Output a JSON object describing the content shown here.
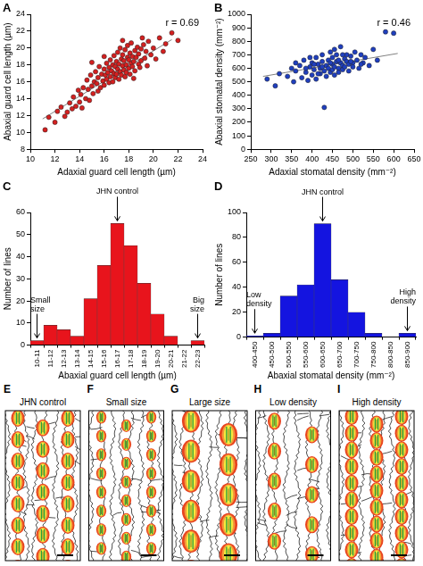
{
  "chart_data": [
    {
      "panel": "A",
      "type": "scatter",
      "x_label": "Adaxial guard cell length (µm)",
      "y_label": "Abaxial guard cell length (µm)",
      "color": "#d42020",
      "marker": "circle",
      "grid": false,
      "x": [
        11.2,
        11.5,
        12.0,
        12.2,
        12.5,
        12.8,
        13.0,
        13.2,
        13.4,
        13.5,
        13.7,
        13.9,
        14.0,
        14.1,
        14.2,
        14.3,
        14.5,
        14.6,
        14.7,
        14.8,
        14.9,
        15.0,
        15.1,
        15.2,
        15.3,
        15.4,
        15.5,
        15.5,
        15.6,
        15.7,
        15.8,
        15.9,
        16.0,
        16.0,
        16.1,
        16.2,
        16.2,
        16.3,
        16.4,
        16.4,
        16.5,
        16.5,
        16.6,
        16.7,
        16.7,
        16.8,
        16.8,
        16.9,
        16.9,
        17.0,
        17.0,
        17.1,
        17.1,
        17.2,
        17.2,
        17.3,
        17.3,
        17.4,
        17.4,
        17.5,
        17.5,
        17.6,
        17.6,
        17.7,
        17.7,
        17.8,
        17.8,
        17.9,
        17.9,
        18.0,
        18.0,
        18.1,
        18.1,
        18.2,
        18.2,
        18.3,
        18.3,
        18.4,
        18.5,
        18.5,
        18.6,
        18.7,
        18.8,
        18.8,
        18.9,
        19.0,
        19.0,
        19.2,
        19.3,
        19.4,
        19.5,
        19.6,
        19.8,
        20.0,
        20.2,
        20.5,
        20.8,
        21.0,
        21.5,
        22.0,
        19.1,
        17.5,
        16.0,
        15.0,
        18.4
      ],
      "values": [
        10.3,
        11.8,
        11.2,
        12.5,
        13.0,
        11.9,
        12.4,
        13.5,
        12.8,
        14.2,
        13.1,
        15.0,
        13.6,
        14.5,
        12.9,
        15.3,
        14.0,
        16.2,
        15.1,
        13.8,
        16.8,
        15.5,
        14.6,
        16.0,
        17.2,
        15.8,
        14.9,
        16.5,
        17.8,
        15.3,
        16.9,
        16.1,
        17.5,
        15.6,
        16.8,
        18.2,
        16.3,
        17.1,
        15.9,
        17.7,
        16.6,
        18.6,
        17.3,
        16.0,
        18.0,
        17.0,
        19.1,
        16.5,
        17.8,
        18.4,
        16.9,
        17.5,
        19.5,
        16.3,
        18.1,
        17.2,
        20.0,
        18.7,
        16.8,
        17.9,
        19.2,
        17.4,
        18.5,
        16.6,
        19.8,
        18.0,
        17.1,
        18.9,
        20.3,
        17.6,
        18.6,
        19.4,
        16.9,
        18.2,
        20.6,
        17.8,
        19.0,
        18.4,
        19.7,
        17.3,
        18.9,
        20.1,
        18.1,
        19.3,
        17.7,
        19.9,
        18.5,
        20.4,
        18.8,
        19.6,
        17.9,
        20.8,
        19.2,
        20.0,
        18.7,
        21.2,
        19.6,
        20.5,
        21.8,
        20.9,
        21.2,
        20.9,
        19.0,
        18.3,
        16.4
      ],
      "trend_line": {
        "x": [
          11,
          21.5
        ],
        "values": [
          11.6,
          21.0
        ],
        "color": "#808080"
      },
      "annotations": [
        {
          "text": "r = 0.69"
        }
      ],
      "xlim": [
        10,
        24
      ],
      "xticks": [
        10,
        12,
        14,
        16,
        18,
        20,
        22,
        24
      ],
      "ylim": [
        8,
        24
      ],
      "yticks": [
        8,
        10,
        12,
        14,
        16,
        18,
        20,
        22,
        24
      ]
    },
    {
      "panel": "B",
      "type": "scatter",
      "x_label": "Adaxial stomatal density (mm⁻²)",
      "y_label": "Abaxial stomatal density (mm⁻²)",
      "color": "#1f3fbf",
      "marker": "circle",
      "grid": false,
      "x": [
        290,
        310,
        320,
        340,
        350,
        355,
        360,
        370,
        375,
        380,
        385,
        390,
        395,
        400,
        400,
        405,
        410,
        410,
        415,
        420,
        420,
        425,
        425,
        430,
        430,
        435,
        435,
        440,
        440,
        445,
        445,
        450,
        450,
        450,
        455,
        455,
        460,
        460,
        465,
        465,
        470,
        470,
        475,
        475,
        480,
        480,
        485,
        485,
        490,
        490,
        495,
        500,
        500,
        505,
        510,
        515,
        520,
        525,
        530,
        540,
        550,
        560,
        580,
        600,
        360,
        395,
        415,
        465,
        445,
        425,
        405,
        475,
        495,
        455,
        385,
        520
      ],
      "values": [
        520,
        470,
        560,
        540,
        600,
        500,
        580,
        620,
        530,
        660,
        570,
        510,
        610,
        640,
        550,
        590,
        680,
        520,
        630,
        600,
        560,
        650,
        700,
        580,
        310,
        620,
        540,
        660,
        600,
        570,
        720,
        630,
        590,
        680,
        610,
        550,
        650,
        700,
        600,
        570,
        640,
        760,
        620,
        590,
        670,
        610,
        650,
        700,
        630,
        580,
        690,
        640,
        610,
        720,
        660,
        600,
        700,
        640,
        680,
        620,
        740,
        660,
        870,
        860,
        640,
        680,
        560,
        660,
        640,
        610,
        630,
        700,
        650,
        740,
        600,
        630
      ],
      "trend_line": {
        "x": [
          280,
          610
        ],
        "values": [
          540,
          710
        ],
        "color": "#808080"
      },
      "annotations": [
        {
          "text": "r = 0.46"
        }
      ],
      "xlim": [
        250,
        650
      ],
      "xticks": [
        250,
        300,
        350,
        400,
        450,
        500,
        550,
        600,
        650
      ],
      "ylim": [
        0,
        1000
      ],
      "yticks": [
        0,
        100,
        200,
        300,
        400,
        500,
        600,
        700,
        800,
        900,
        1000
      ]
    },
    {
      "panel": "C",
      "type": "bar",
      "x_label": "Abaxial guard cell length (µm)",
      "y_label": "Number of lines",
      "color": "#e8141c",
      "grid": false,
      "categories": [
        "10-11",
        "11-12",
        "12-13",
        "13-14",
        "14-15",
        "15-16",
        "16-17",
        "17-18",
        "18-19",
        "19-20",
        "20-21",
        "21-22",
        "22-23"
      ],
      "values": [
        2,
        9,
        7,
        4,
        21,
        36,
        55,
        45,
        28,
        14,
        4,
        0,
        2
      ],
      "annotations": [
        {
          "text": "Small size",
          "category": "10-11"
        },
        {
          "text": "JHN control",
          "category": "16-17"
        },
        {
          "text": "Big size",
          "category": "22-23"
        }
      ],
      "ylim": [
        0,
        60
      ],
      "yticks": [
        0,
        10,
        20,
        30,
        40,
        50,
        60
      ]
    },
    {
      "panel": "D",
      "type": "bar",
      "x_label": "Abaxial stomatal density (mm⁻²)",
      "y_label": "Number of lines",
      "color": "#1414e0",
      "grid": false,
      "categories": [
        "400-450",
        "450-500",
        "500-550",
        "550-600",
        "600-650",
        "650-700",
        "700-750",
        "750-800",
        "800-850",
        "850-900"
      ],
      "values": [
        1,
        3,
        33,
        42,
        91,
        46,
        20,
        3,
        0,
        3
      ],
      "annotations": [
        {
          "text": "Low density",
          "category": "400-450"
        },
        {
          "text": "JHN control",
          "category": "600-650"
        },
        {
          "text": "High density",
          "category": "850-900"
        }
      ],
      "ylim": [
        0,
        100
      ],
      "yticks": [
        0,
        20,
        40,
        60,
        80,
        100
      ]
    }
  ],
  "diagram": {
    "panels": [
      {
        "label": "E",
        "title": "JHN control"
      },
      {
        "label": "F",
        "title": "Small size"
      },
      {
        "label": "G",
        "title": "Large size"
      },
      {
        "label": "H",
        "title": "Low density"
      },
      {
        "label": "I",
        "title": "High density"
      }
    ]
  }
}
